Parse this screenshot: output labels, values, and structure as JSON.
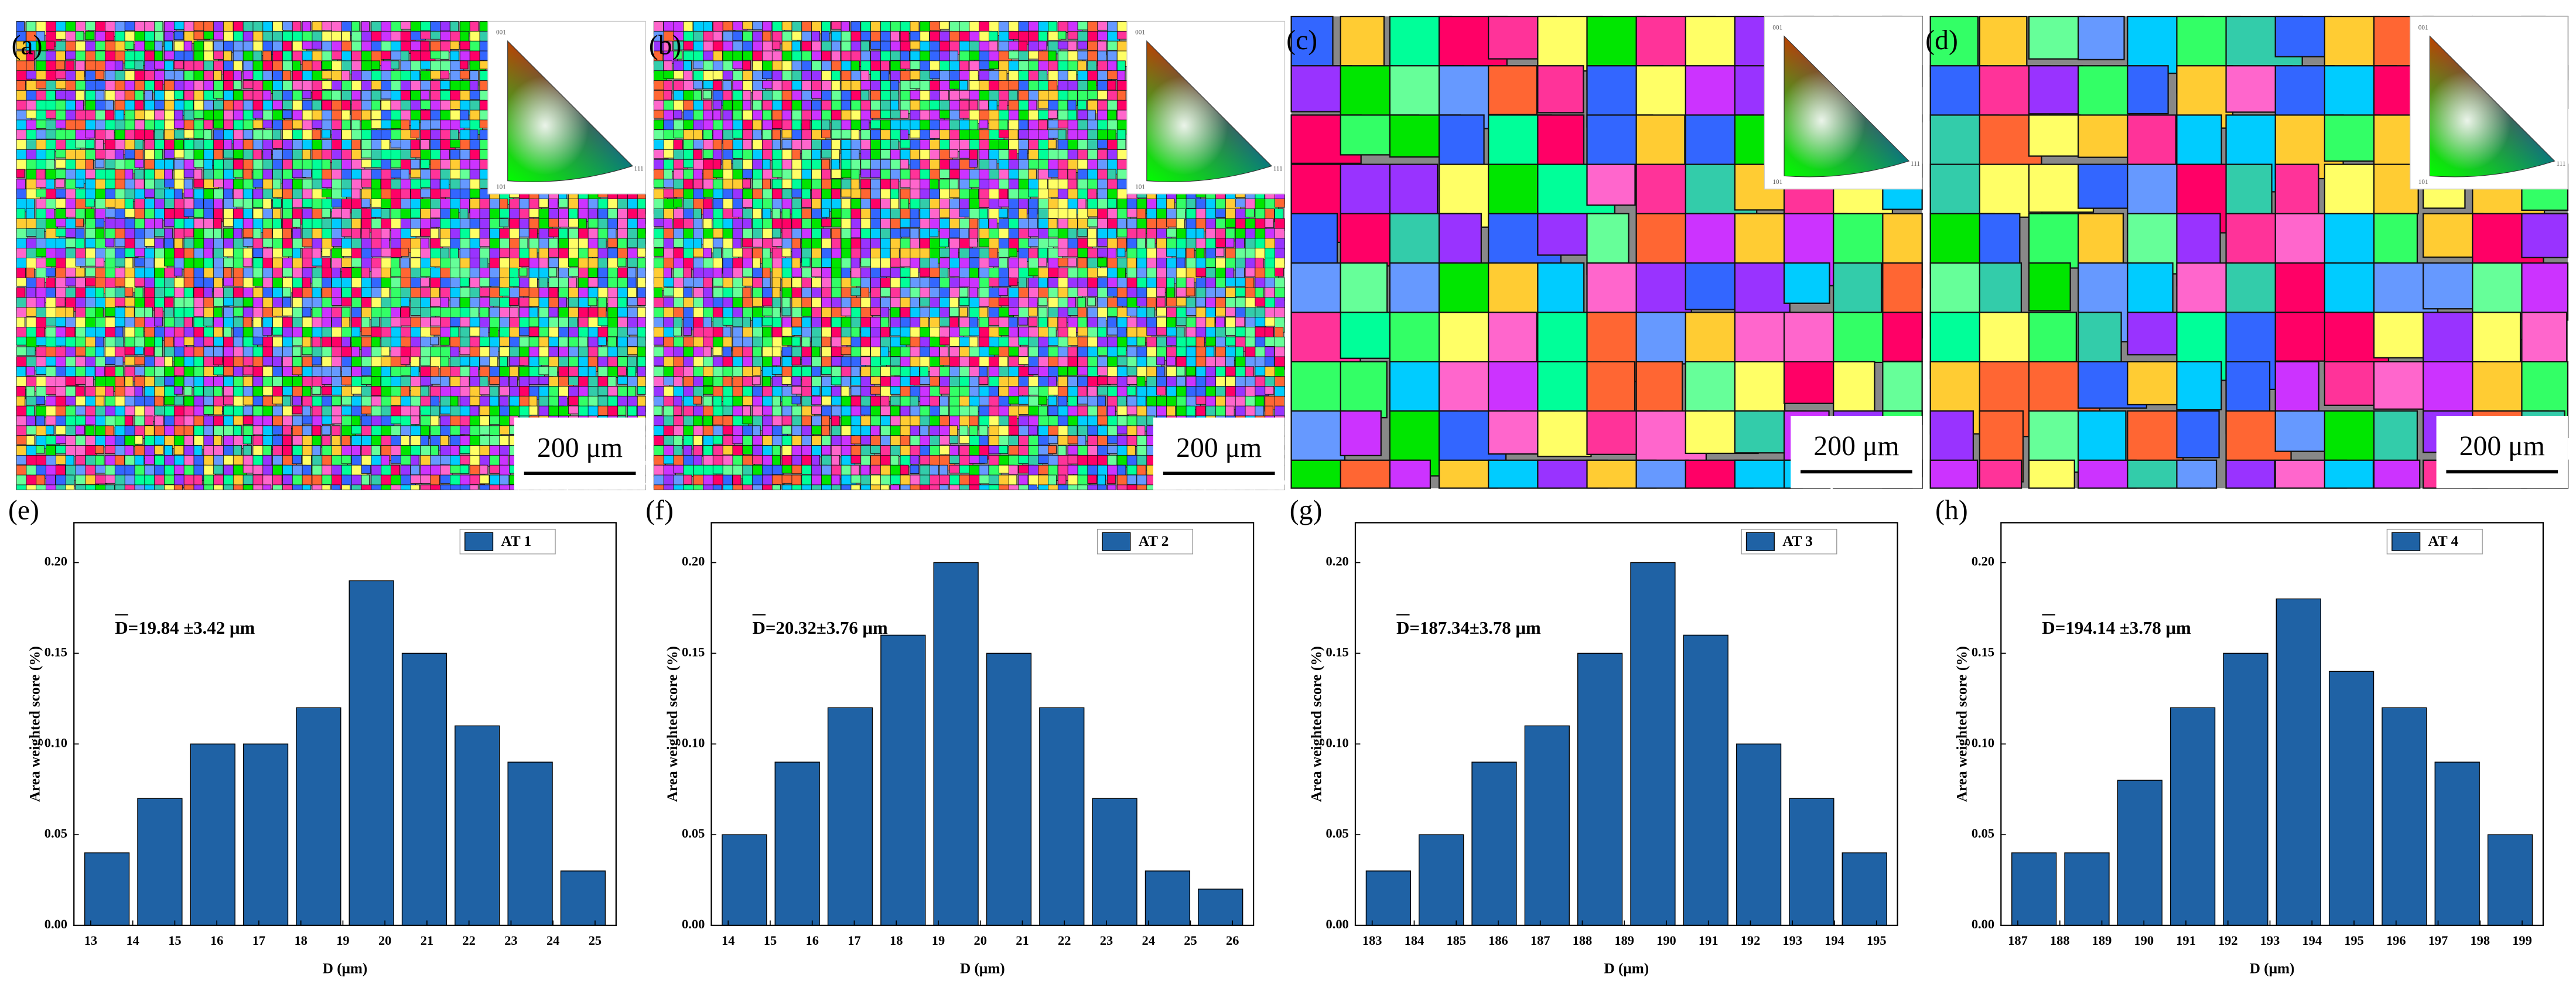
{
  "maps": [
    {
      "label": "(a)",
      "scale_bar": "200 μm",
      "ipf": [
        "001",
        "101",
        "111"
      ]
    },
    {
      "label": "(b)",
      "scale_bar": "200 μm",
      "ipf": [
        "001",
        "101",
        "111"
      ]
    },
    {
      "label": "(c)",
      "scale_bar": "200 μm",
      "ipf": [
        "001",
        "101",
        "111"
      ]
    },
    {
      "label": "(d)",
      "scale_bar": "200 μm",
      "ipf": [
        "001",
        "101",
        "111"
      ]
    }
  ],
  "chart_data": [
    {
      "type": "bar",
      "panel_label": "(e)",
      "annotation": "D=19.84 ±3.42 μm",
      "xlabel": "D  (μm)",
      "ylabel": "Area weighted score (%)",
      "color": "#1f62a5",
      "series": [
        {
          "name": "AT 1",
          "color": "#1f62a5",
          "values": [
            0.04,
            0.07,
            0.1,
            0.1,
            0.12,
            0.19,
            0.15,
            0.11,
            0.09,
            0.03
          ]
        }
      ],
      "xlim": [
        12.6,
        25.5
      ],
      "xticks": [
        13,
        14,
        15,
        16,
        17,
        18,
        19,
        20,
        21,
        22,
        23,
        24,
        25
      ],
      "ylim": [
        0,
        0.222
      ],
      "yticks": [
        {
          "value": 0,
          "label": "0.00"
        },
        {
          "value": 0.05,
          "label": "0.05"
        },
        {
          "value": 0.1,
          "label": "0.10"
        },
        {
          "value": 0.15,
          "label": "0.15"
        },
        {
          "value": 0.2,
          "label": "0.20"
        }
      ]
    },
    {
      "type": "bar",
      "panel_label": "(f)",
      "annotation": "D=20.32±3.76 μm",
      "xlabel": "D  (μm)",
      "ylabel": "Area weighted score (%)",
      "color": "#1f62a5",
      "series": [
        {
          "name": "AT 2",
          "color": "#1f62a5",
          "values": [
            0.05,
            0.09,
            0.12,
            0.16,
            0.2,
            0.15,
            0.12,
            0.07,
            0.03,
            0.02
          ]
        }
      ],
      "xlim": [
        13.6,
        26.5
      ],
      "xticks": [
        14,
        15,
        16,
        17,
        18,
        19,
        20,
        21,
        22,
        23,
        24,
        25,
        26
      ],
      "ylim": [
        0,
        0.222
      ],
      "yticks": [
        {
          "value": 0,
          "label": "0.00"
        },
        {
          "value": 0.05,
          "label": "0.05"
        },
        {
          "value": 0.1,
          "label": "0.10"
        },
        {
          "value": 0.15,
          "label": "0.15"
        },
        {
          "value": 0.2,
          "label": "0.20"
        }
      ]
    },
    {
      "type": "bar",
      "panel_label": "(g)",
      "annotation": "D=187.34±3.78 μm",
      "xlabel": "D  (μm)",
      "ylabel": "Area weighted score (%)",
      "color": "#1f62a5",
      "series": [
        {
          "name": "AT 3",
          "color": "#1f62a5",
          "values": [
            0.03,
            0.05,
            0.09,
            0.11,
            0.15,
            0.2,
            0.16,
            0.1,
            0.07,
            0.04
          ]
        }
      ],
      "xlim": [
        182.6,
        195.5
      ],
      "xticks": [
        183,
        184,
        185,
        186,
        187,
        188,
        189,
        190,
        191,
        192,
        193,
        194,
        195
      ],
      "ylim": [
        0,
        0.222
      ],
      "yticks": [
        {
          "value": 0,
          "label": "0.00"
        },
        {
          "value": 0.05,
          "label": "0.05"
        },
        {
          "value": 0.1,
          "label": "0.10"
        },
        {
          "value": 0.15,
          "label": "0.15"
        },
        {
          "value": 0.2,
          "label": "0.20"
        }
      ]
    },
    {
      "type": "bar",
      "panel_label": "(h)",
      "annotation": "D=194.14 ±3.78 μm",
      "xlabel": "D  (μm)",
      "ylabel": "Area weighted score (%)",
      "color": "#1f62a5",
      "series": [
        {
          "name": "AT 4",
          "color": "#1f62a5",
          "values": [
            0.04,
            0.04,
            0.08,
            0.12,
            0.15,
            0.18,
            0.14,
            0.12,
            0.09,
            0.05
          ]
        }
      ],
      "xlim": [
        186.6,
        199.5
      ],
      "xticks": [
        187,
        188,
        189,
        190,
        191,
        192,
        193,
        194,
        195,
        196,
        197,
        198,
        199
      ],
      "ylim": [
        0,
        0.222
      ],
      "yticks": [
        {
          "value": 0,
          "label": "0.00"
        },
        {
          "value": 0.05,
          "label": "0.05"
        },
        {
          "value": 0.1,
          "label": "0.10"
        },
        {
          "value": 0.15,
          "label": "0.15"
        },
        {
          "value": 0.2,
          "label": "0.20"
        }
      ]
    }
  ]
}
